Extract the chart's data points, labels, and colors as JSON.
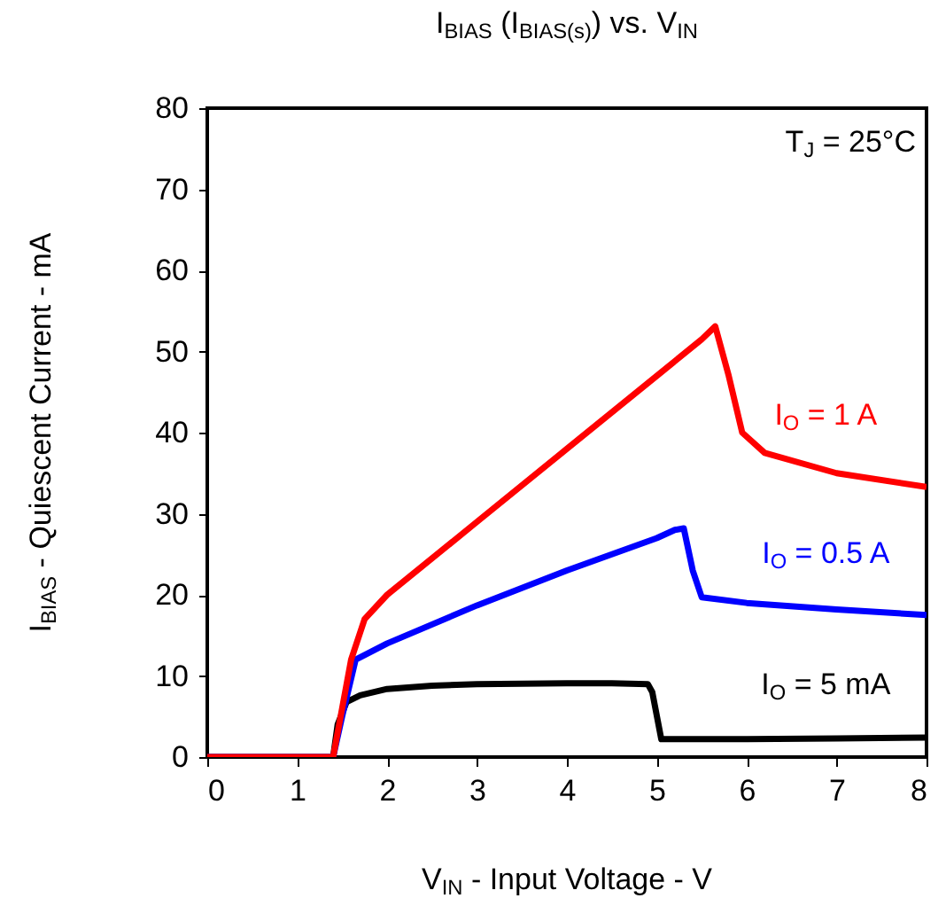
{
  "chart_data": {
    "type": "line",
    "title": "I$_{BIAS}$ (I$_{BIAS(s)}$) vs. V$_{IN}$",
    "xlabel": "V$_{IN}$ - Input Voltage - V",
    "ylabel": "I$_{BIAS}$ - Quiescent Current - mA",
    "xlim": [
      0,
      8
    ],
    "ylim": [
      0,
      80
    ],
    "xticks": [
      0,
      1,
      2,
      3,
      4,
      5,
      6,
      7,
      8
    ],
    "yticks": [
      0,
      10,
      20,
      30,
      40,
      50,
      60,
      70,
      80
    ],
    "grid": false,
    "series": [
      {
        "name": "I$_{O}$ = 5 mA",
        "color": "#000000",
        "x": [
          0,
          1.4,
          1.45,
          1.55,
          1.7,
          2,
          2.5,
          3,
          4,
          4.5,
          4.9,
          4.95,
          5.05,
          6,
          7,
          8
        ],
        "values": [
          0,
          0,
          4,
          6.8,
          7.6,
          8.4,
          8.8,
          9,
          9.1,
          9.1,
          9,
          8,
          2.2,
          2.2,
          2.3,
          2.4
        ]
      },
      {
        "name": "I$_{O}$ = 0.5 A",
        "color": "#0000ff",
        "x": [
          0,
          1.4,
          1.5,
          1.65,
          2,
          3,
          4,
          5,
          5.2,
          5.3,
          5.4,
          5.5,
          6,
          7,
          8
        ],
        "values": [
          0,
          0,
          5,
          12,
          14,
          18.7,
          23,
          27,
          28,
          28.2,
          23,
          19.7,
          19,
          18.2,
          17.5
        ]
      },
      {
        "name": "I$_{O}$ = 1 A",
        "color": "#ff0000",
        "x": [
          0,
          1.4,
          1.5,
          1.6,
          1.75,
          2,
          3,
          4,
          5,
          5.5,
          5.65,
          5.8,
          5.95,
          6.2,
          7,
          8
        ],
        "values": [
          0,
          0,
          6,
          12,
          17,
          20,
          29,
          38,
          47,
          51.5,
          53.1,
          47,
          40,
          37.5,
          35,
          33.3
        ]
      }
    ],
    "annotations": [
      "T$_{J}$ = 25°C"
    ]
  }
}
